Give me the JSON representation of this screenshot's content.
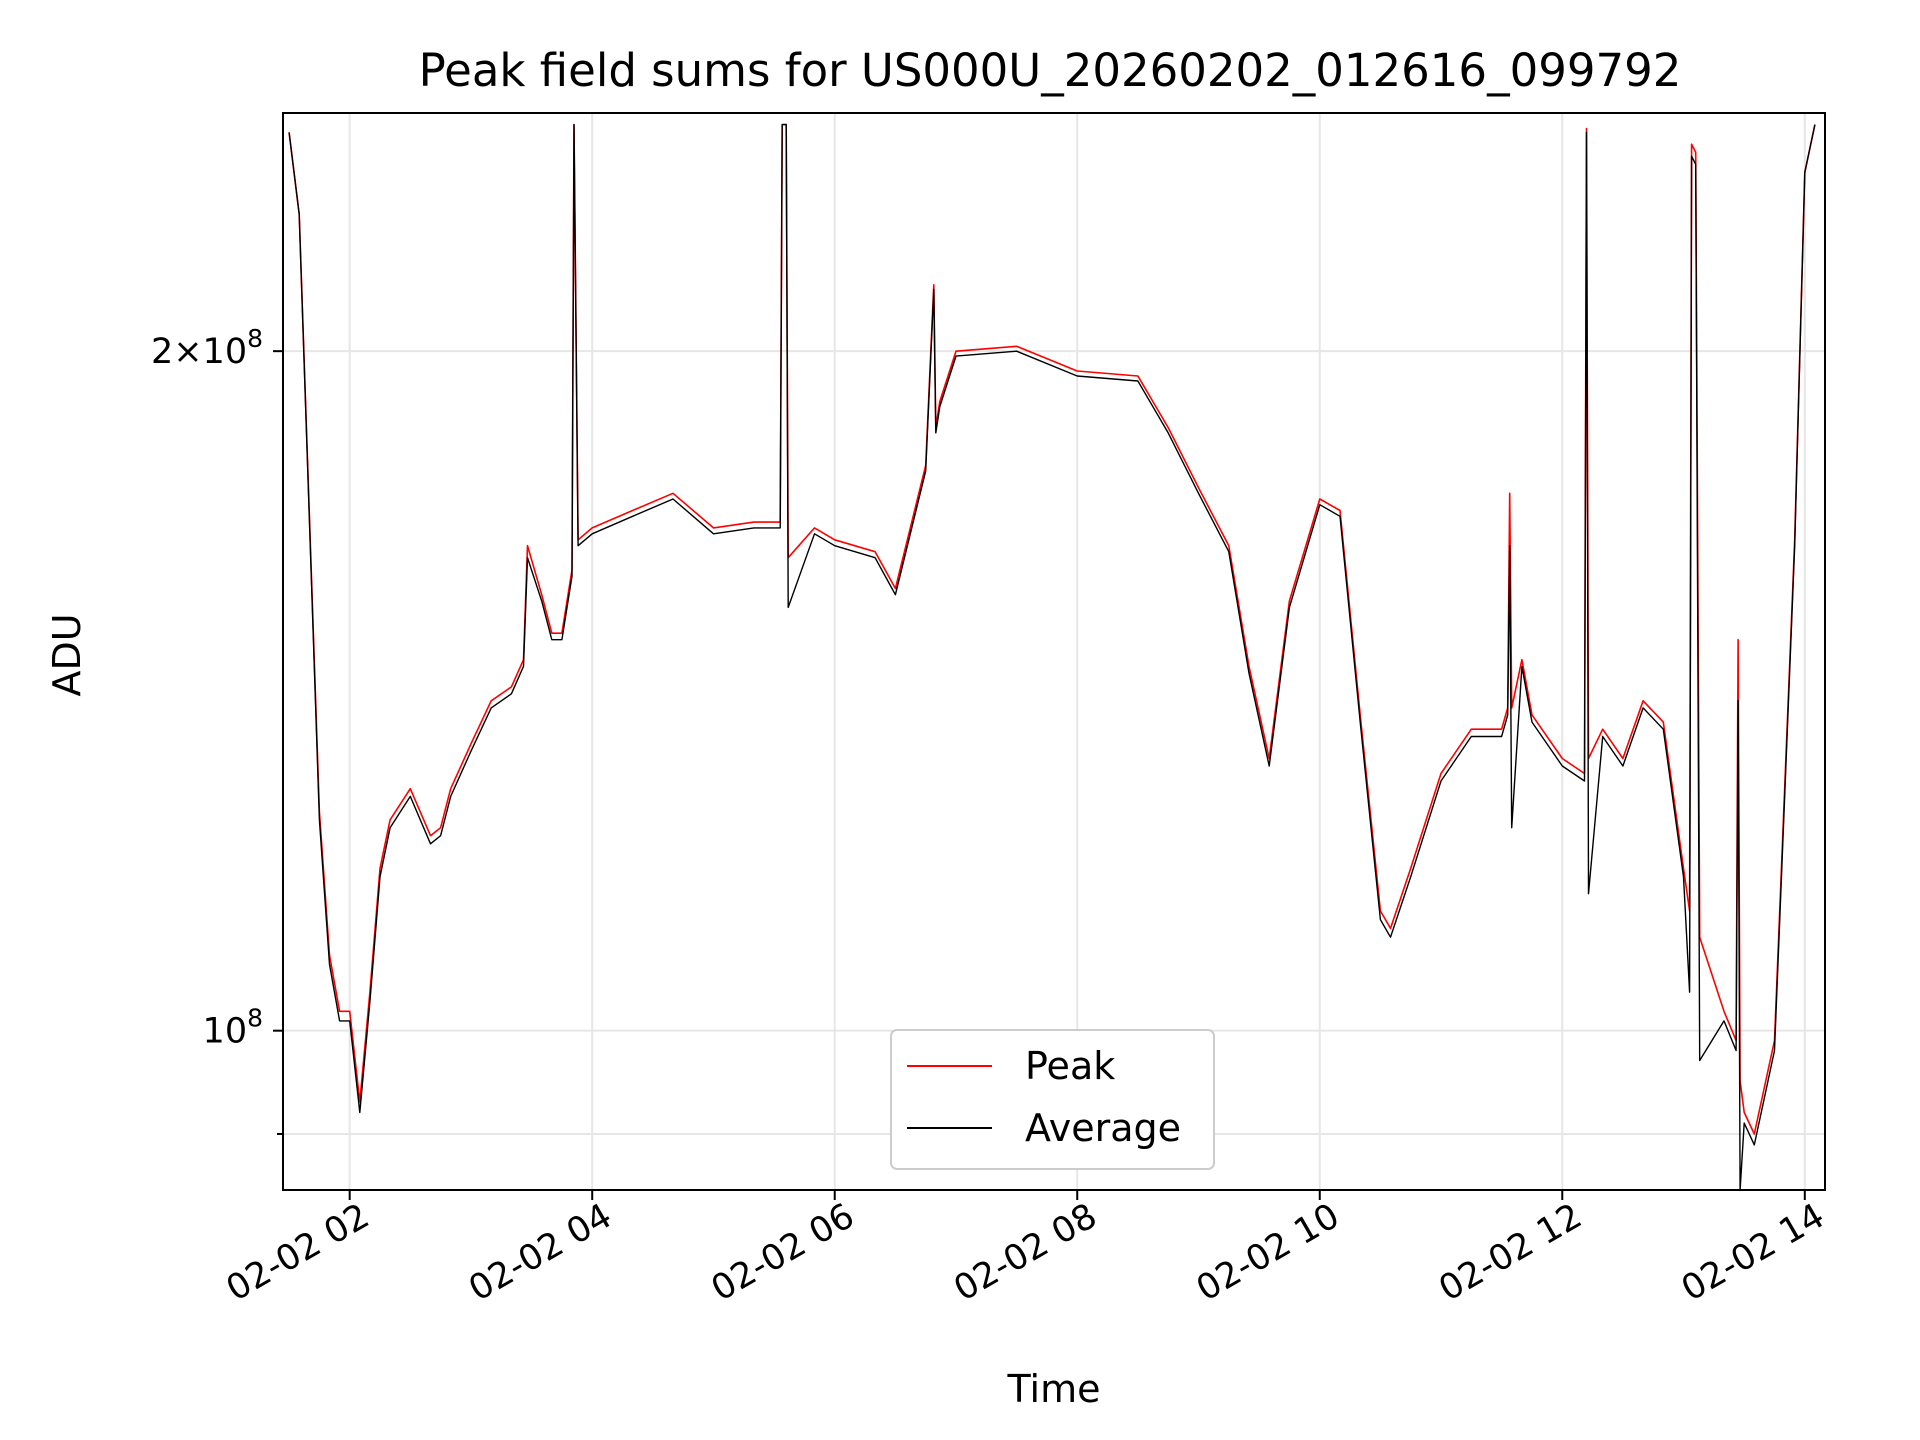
{
  "chart_data": {
    "type": "line",
    "title": "Peak field sums for US000U_20260202_012616_099792",
    "xlabel": "Time",
    "ylabel": "ADU",
    "x_type": "time",
    "y_scale": "log",
    "xlim": [
      "2026-02-02 01:27",
      "2026-02-02 14:10"
    ],
    "ylim": [
      85000000,
      255000000
    ],
    "grid": true,
    "legend_position": "lower-center",
    "x_ticks": [
      {
        "value": "2026-02-02 02:00",
        "label": "02-02 02"
      },
      {
        "value": "2026-02-02 04:00",
        "label": "02-02 04"
      },
      {
        "value": "2026-02-02 06:00",
        "label": "02-02 06"
      },
      {
        "value": "2026-02-02 08:00",
        "label": "02-02 08"
      },
      {
        "value": "2026-02-02 10:00",
        "label": "02-02 10"
      },
      {
        "value": "2026-02-02 12:00",
        "label": "02-02 12"
      },
      {
        "value": "2026-02-02 14:00",
        "label": "02-02 14"
      }
    ],
    "y_ticks": [
      {
        "value": 100000000,
        "base": "10",
        "exp": "8",
        "coef": ""
      },
      {
        "value": 200000000,
        "base": "10",
        "exp": "8",
        "coef": "2"
      }
    ],
    "y_minor_ticks": [
      90000000
    ],
    "series": [
      {
        "name": "Peak",
        "color": "#ff0000",
        "x": [
          "2026-02-02 01:30",
          "2026-02-02 01:35",
          "2026-02-02 01:45",
          "2026-02-02 01:50",
          "2026-02-02 01:55",
          "2026-02-02 02:00",
          "2026-02-02 02:05",
          "2026-02-02 02:10",
          "2026-02-02 02:15",
          "2026-02-02 02:20",
          "2026-02-02 02:30",
          "2026-02-02 02:40",
          "2026-02-02 02:45",
          "2026-02-02 02:50",
          "2026-02-02 03:00",
          "2026-02-02 03:10",
          "2026-02-02 03:20",
          "2026-02-02 03:26",
          "2026-02-02 03:28",
          "2026-02-02 03:35",
          "2026-02-02 03:40",
          "2026-02-02 03:45",
          "2026-02-02 03:50",
          "2026-02-02 03:51",
          "2026-02-02 03:53",
          "2026-02-02 04:00",
          "2026-02-02 04:20",
          "2026-02-02 04:40",
          "2026-02-02 05:00",
          "2026-02-02 05:20",
          "2026-02-02 05:33",
          "2026-02-02 05:34",
          "2026-02-02 05:36",
          "2026-02-02 05:37",
          "2026-02-02 05:50",
          "2026-02-02 06:00",
          "2026-02-02 06:20",
          "2026-02-02 06:30",
          "2026-02-02 06:45",
          "2026-02-02 06:49",
          "2026-02-02 06:50",
          "2026-02-02 06:52",
          "2026-02-02 07:00",
          "2026-02-02 07:30",
          "2026-02-02 08:00",
          "2026-02-02 08:30",
          "2026-02-02 08:45",
          "2026-02-02 09:00",
          "2026-02-02 09:15",
          "2026-02-02 09:25",
          "2026-02-02 09:35",
          "2026-02-02 09:45",
          "2026-02-02 10:00",
          "2026-02-02 10:10",
          "2026-02-02 10:20",
          "2026-02-02 10:30",
          "2026-02-02 10:35",
          "2026-02-02 10:45",
          "2026-02-02 11:00",
          "2026-02-02 11:15",
          "2026-02-02 11:30",
          "2026-02-02 11:33",
          "2026-02-02 11:34",
          "2026-02-02 11:35",
          "2026-02-02 11:40",
          "2026-02-02 11:45",
          "2026-02-02 12:00",
          "2026-02-02 12:11",
          "2026-02-02 12:12",
          "2026-02-02 12:13",
          "2026-02-02 12:20",
          "2026-02-02 12:30",
          "2026-02-02 12:40",
          "2026-02-02 12:50",
          "2026-02-02 13:00",
          "2026-02-02 13:03",
          "2026-02-02 13:04",
          "2026-02-02 13:06",
          "2026-02-02 13:08",
          "2026-02-02 13:20",
          "2026-02-02 13:26",
          "2026-02-02 13:27",
          "2026-02-02 13:28",
          "2026-02-02 13:30",
          "2026-02-02 13:35",
          "2026-02-02 13:45",
          "2026-02-02 13:55",
          "2026-02-02 14:00",
          "2026-02-02 14:05"
        ],
        "values": [
          250000000,
          230000000,
          125000000,
          108000000,
          102000000,
          102000000,
          93000000,
          104000000,
          118000000,
          124000000,
          128000000,
          122000000,
          123000000,
          128000000,
          134000000,
          140000000,
          142000000,
          146000000,
          164000000,
          156000000,
          150000000,
          150000000,
          160000000,
          252000000,
          165000000,
          167000000,
          170000000,
          173000000,
          167000000,
          168000000,
          168000000,
          252000000,
          252000000,
          162000000,
          167000000,
          165000000,
          163000000,
          157000000,
          178000000,
          214000000,
          185000000,
          190000000,
          200000000,
          201000000,
          196000000,
          195000000,
          185000000,
          174000000,
          164000000,
          145000000,
          132000000,
          155000000,
          172000000,
          170000000,
          138000000,
          113000000,
          111000000,
          118000000,
          130000000,
          136000000,
          136000000,
          139000000,
          173000000,
          139000000,
          146000000,
          138000000,
          132000000,
          130000000,
          251000000,
          132000000,
          136000000,
          132000000,
          140000000,
          137000000,
          118000000,
          113000000,
          247000000,
          245000000,
          110000000,
          102000000,
          99000000,
          149000000,
          95000000,
          92000000,
          90000000,
          99000000,
          165000000,
          240000000,
          252000000
        ]
      },
      {
        "name": "Average",
        "color": "#000000",
        "x": [
          "2026-02-02 01:30",
          "2026-02-02 01:35",
          "2026-02-02 01:45",
          "2026-02-02 01:50",
          "2026-02-02 01:55",
          "2026-02-02 02:00",
          "2026-02-02 02:05",
          "2026-02-02 02:10",
          "2026-02-02 02:15",
          "2026-02-02 02:20",
          "2026-02-02 02:30",
          "2026-02-02 02:40",
          "2026-02-02 02:45",
          "2026-02-02 02:50",
          "2026-02-02 03:00",
          "2026-02-02 03:10",
          "2026-02-02 03:20",
          "2026-02-02 03:26",
          "2026-02-02 03:28",
          "2026-02-02 03:35",
          "2026-02-02 03:40",
          "2026-02-02 03:45",
          "2026-02-02 03:50",
          "2026-02-02 03:51",
          "2026-02-02 03:53",
          "2026-02-02 04:00",
          "2026-02-02 04:20",
          "2026-02-02 04:40",
          "2026-02-02 05:00",
          "2026-02-02 05:20",
          "2026-02-02 05:33",
          "2026-02-02 05:34",
          "2026-02-02 05:36",
          "2026-02-02 05:37",
          "2026-02-02 05:50",
          "2026-02-02 06:00",
          "2026-02-02 06:20",
          "2026-02-02 06:30",
          "2026-02-02 06:45",
          "2026-02-02 06:49",
          "2026-02-02 06:50",
          "2026-02-02 06:52",
          "2026-02-02 07:00",
          "2026-02-02 07:30",
          "2026-02-02 08:00",
          "2026-02-02 08:30",
          "2026-02-02 08:45",
          "2026-02-02 09:00",
          "2026-02-02 09:15",
          "2026-02-02 09:25",
          "2026-02-02 09:35",
          "2026-02-02 09:45",
          "2026-02-02 10:00",
          "2026-02-02 10:10",
          "2026-02-02 10:20",
          "2026-02-02 10:30",
          "2026-02-02 10:35",
          "2026-02-02 10:45",
          "2026-02-02 11:00",
          "2026-02-02 11:15",
          "2026-02-02 11:30",
          "2026-02-02 11:33",
          "2026-02-02 11:34",
          "2026-02-02 11:35",
          "2026-02-02 11:40",
          "2026-02-02 11:45",
          "2026-02-02 12:00",
          "2026-02-02 12:11",
          "2026-02-02 12:12",
          "2026-02-02 12:13",
          "2026-02-02 12:20",
          "2026-02-02 12:30",
          "2026-02-02 12:40",
          "2026-02-02 12:50",
          "2026-02-02 13:00",
          "2026-02-02 13:03",
          "2026-02-02 13:04",
          "2026-02-02 13:06",
          "2026-02-02 13:08",
          "2026-02-02 13:20",
          "2026-02-02 13:26",
          "2026-02-02 13:27",
          "2026-02-02 13:28",
          "2026-02-02 13:30",
          "2026-02-02 13:35",
          "2026-02-02 13:45",
          "2026-02-02 13:55",
          "2026-02-02 14:00",
          "2026-02-02 14:05"
        ],
        "values": [
          250000000,
          230000000,
          124000000,
          107000000,
          101000000,
          101000000,
          92000000,
          103000000,
          117000000,
          123000000,
          127000000,
          121000000,
          122000000,
          127000000,
          133000000,
          139000000,
          141000000,
          145000000,
          162000000,
          155000000,
          149000000,
          149000000,
          159000000,
          252000000,
          164000000,
          166000000,
          169000000,
          172000000,
          166000000,
          167000000,
          167000000,
          252000000,
          252000000,
          154000000,
          166000000,
          164000000,
          162000000,
          156000000,
          177000000,
          213000000,
          184000000,
          189000000,
          199000000,
          200000000,
          195000000,
          194000000,
          184000000,
          173000000,
          163000000,
          144000000,
          131000000,
          154000000,
          171000000,
          169000000,
          137000000,
          112000000,
          110000000,
          117000000,
          129000000,
          135000000,
          135000000,
          138000000,
          164000000,
          123000000,
          145000000,
          137000000,
          131000000,
          129000000,
          250000000,
          115000000,
          135000000,
          131000000,
          139000000,
          136000000,
          117000000,
          104000000,
          244000000,
          242000000,
          97000000,
          101000000,
          98000000,
          140000000,
          85000000,
          91000000,
          89000000,
          98000000,
          164000000,
          240000000,
          252000000
        ]
      }
    ]
  }
}
